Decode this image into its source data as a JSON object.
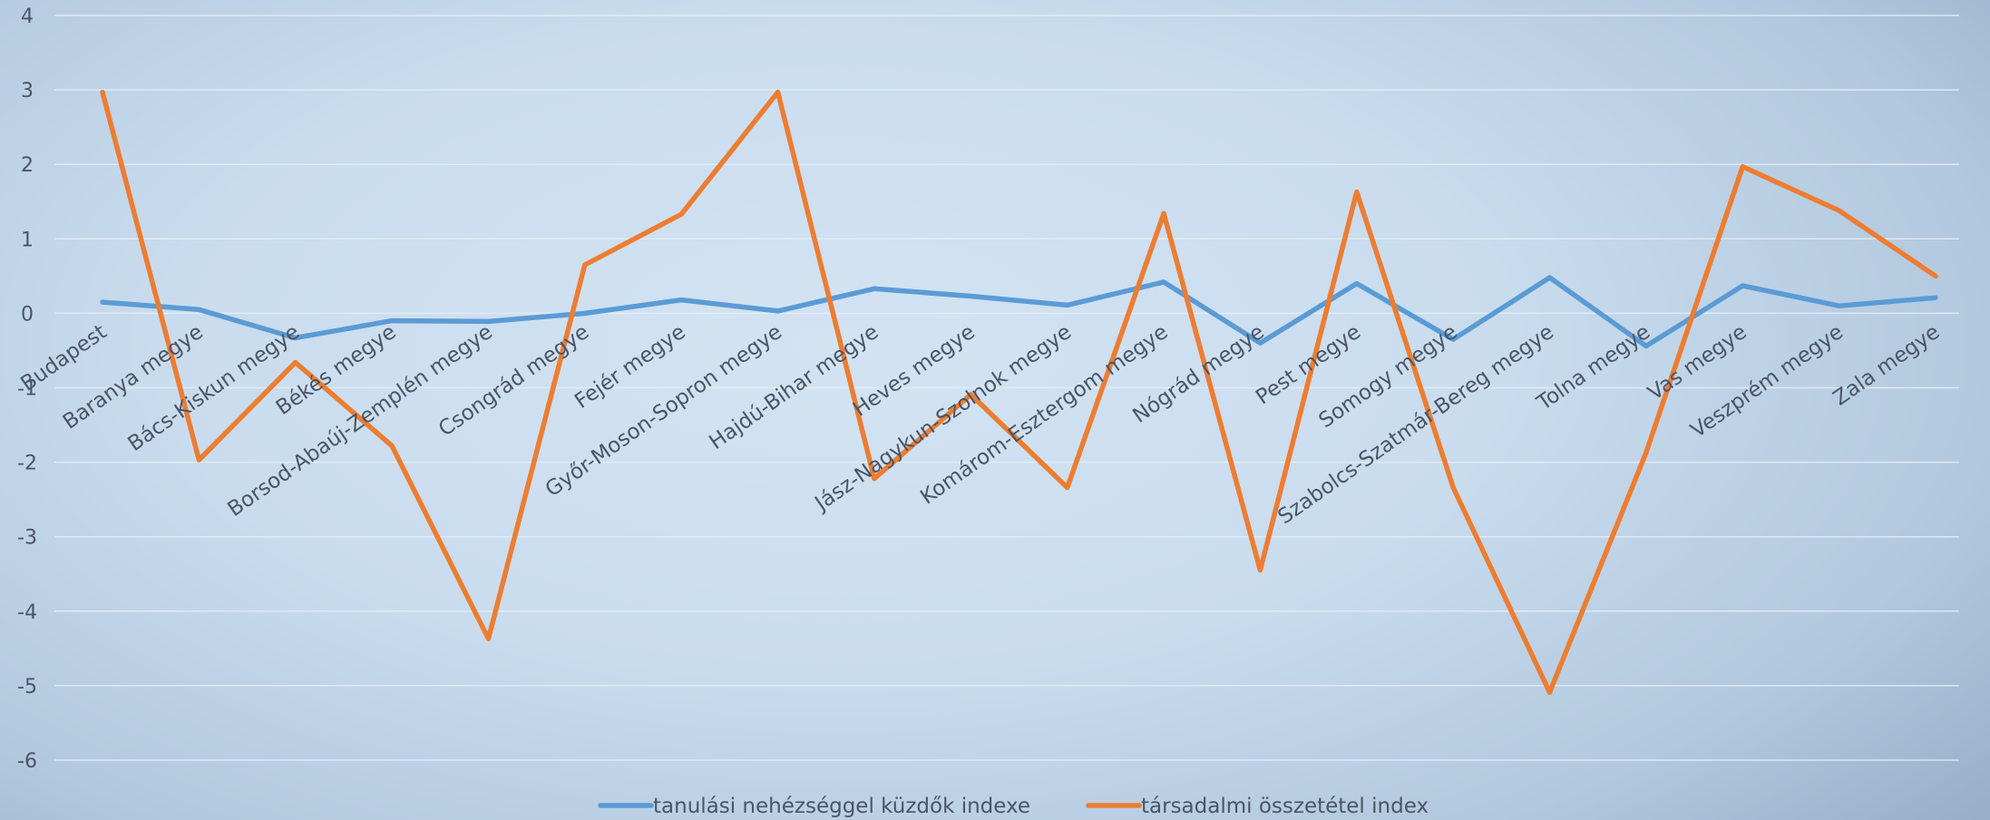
{
  "chart_data": {
    "type": "line",
    "title": "",
    "xlabel": "",
    "ylabel": "",
    "ylim": [
      -6,
      4
    ],
    "yticks": [
      4,
      3,
      2,
      1,
      0,
      -1,
      -2,
      -3,
      -4,
      -5,
      -6
    ],
    "grid": true,
    "legend_position": "bottom",
    "categories": [
      "Budapest",
      "Baranya megye",
      "Bács-Kiskun megye",
      "Békés megye",
      "Borsod-Abaúj-Zemplén megye",
      "Csongrád megye",
      "Fejér megye",
      "Győr-Moson-Sopron megye",
      "Hajdú-Bihar megye",
      "Heves megye",
      "Jász-Nagykun-Szolnok megye",
      "Komárom-Esztergom megye",
      "Nógrád megye",
      "Pest megye",
      "Somogy megye",
      "Szabolcs-Szatmár-Bereg megye",
      "Tolna megye",
      "Vas megye",
      "Veszprém megye",
      "Zala megye"
    ],
    "series": [
      {
        "name": "tanulási nehézséggel küzdők indexe",
        "color": "#5b9bd5",
        "values": [
          0.15,
          0.05,
          -0.33,
          -0.1,
          -0.11,
          0.0,
          0.18,
          0.03,
          0.33,
          0.23,
          0.11,
          0.42,
          -0.4,
          0.4,
          -0.35,
          0.48,
          -0.44,
          0.37,
          0.1,
          0.21
        ]
      },
      {
        "name": "társadalmi összetétel index",
        "color": "#ed7d31",
        "values": [
          2.97,
          -1.97,
          -0.66,
          -1.78,
          -4.37,
          0.65,
          1.33,
          2.97,
          -2.22,
          -1.09,
          -2.34,
          1.34,
          -3.45,
          1.63,
          -2.34,
          -5.09,
          -1.87,
          1.97,
          1.38,
          0.5
        ]
      }
    ]
  }
}
